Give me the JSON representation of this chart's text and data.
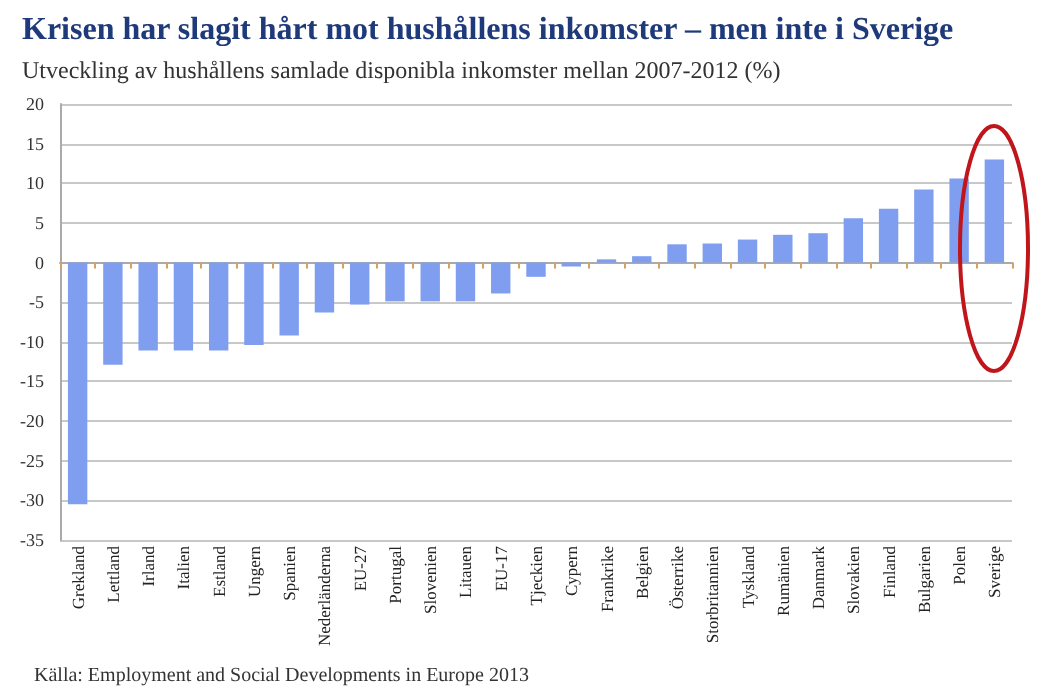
{
  "chart_data": {
    "type": "bar",
    "title": "Krisen har slagit hårt mot hushållens inkomster – men inte i Sverige",
    "subtitle": "Utveckling av hushållens samlade disponibla inkomster mellan 2007-2012 (%)",
    "categories": [
      "Grekland",
      "Lettland",
      "Irland",
      "Italien",
      "Estland",
      "Ungern",
      "Spanien",
      "Nederländerna",
      "EU-27",
      "Portugal",
      "Slovenien",
      "Litauen",
      "EU-17",
      "Tjeckien",
      "Cypern",
      "Frankrike",
      "Belgien",
      "Österrike",
      "Storbritannien",
      "Tyskland",
      "Rumänien",
      "Danmark",
      "Slovakien",
      "Finland",
      "Bulgarien",
      "Polen",
      "Sverige"
    ],
    "values": [
      -30.5,
      -12.9,
      -11.1,
      -11.1,
      -11.1,
      -10.4,
      -9.2,
      -6.3,
      -5.3,
      -4.9,
      -4.9,
      -4.9,
      -3.9,
      -1.8,
      -0.5,
      0.4,
      0.8,
      2.3,
      2.4,
      2.9,
      3.5,
      3.7,
      5.6,
      6.8,
      9.2,
      10.6,
      13.0
    ],
    "color": "#7f9ef0",
    "ylim": [
      -35,
      20
    ],
    "yticks": [
      -35,
      -30,
      -25,
      -20,
      -15,
      -10,
      -5,
      0,
      5,
      10,
      15,
      20
    ],
    "grid": "y",
    "annotations": [
      "Källa: Employment and Social Developments in Europe 2013"
    ]
  }
}
